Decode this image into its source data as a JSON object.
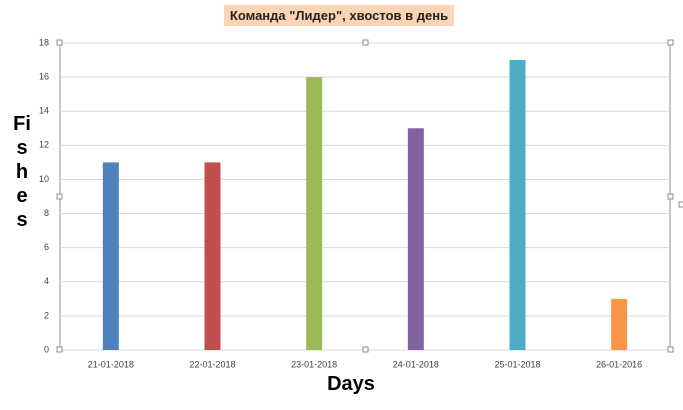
{
  "chart_data": {
    "type": "bar",
    "title": "Команда \"Лидер\", хвостов в день",
    "x_label": "Days",
    "y_label": "Fishes",
    "categories": [
      "21-01-2018",
      "22-01-2018",
      "23-01-2018",
      "24-01-2018",
      "25-01-2018",
      "26-01-2016"
    ],
    "values": [
      11,
      11,
      16,
      13,
      17,
      3
    ],
    "colors": [
      "#4f81bd",
      "#c0504d",
      "#9bbb59",
      "#8064a2",
      "#4bacc6",
      "#f79646"
    ],
    "ylim": [
      0,
      18
    ],
    "yticks": [
      0,
      2,
      4,
      6,
      8,
      10,
      12,
      14,
      16,
      18
    ],
    "grid": true
  }
}
